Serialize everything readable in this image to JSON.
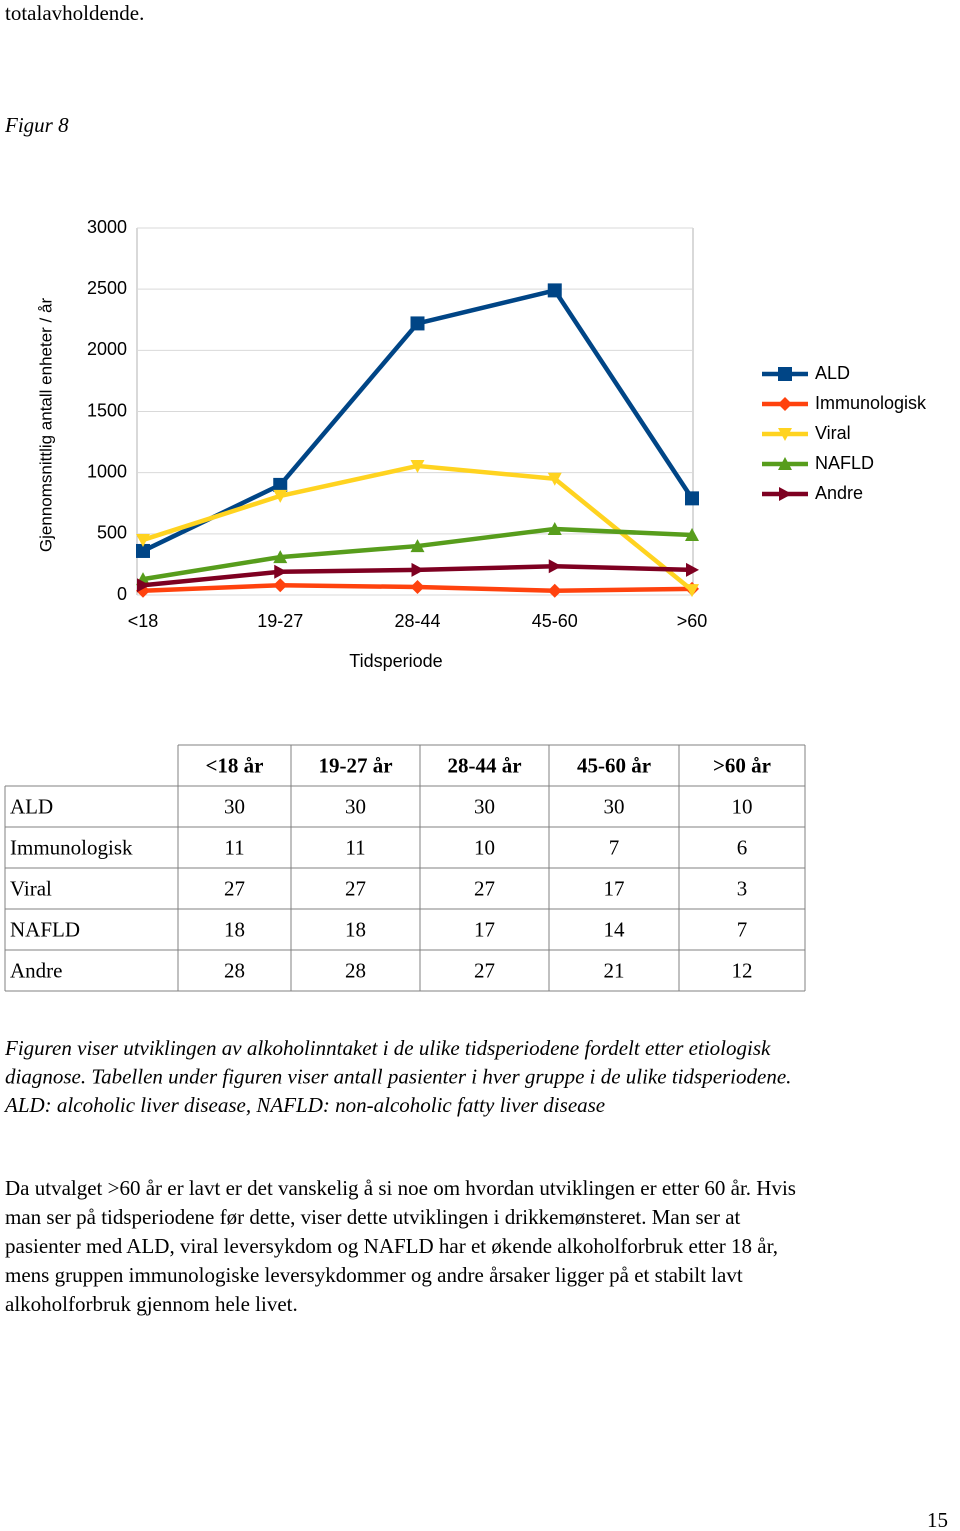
{
  "header_text": "totalavholdende.",
  "figure_label": "Figur 8",
  "chart_data": {
    "type": "line",
    "ylabel": "Gjennomsnittlig antall enheter / år",
    "xlabel": "Tidsperiode",
    "categories": [
      "<18",
      "19-27",
      "28-44",
      "45-60",
      ">60"
    ],
    "ylim": [
      0,
      3000
    ],
    "yticks": [
      0,
      500,
      1000,
      1500,
      2000,
      2500,
      3000
    ],
    "grid": true,
    "legend": "right",
    "series": [
      {
        "name": "ALD",
        "color": "#004586",
        "marker": "square",
        "values": [
          360,
          900,
          2220,
          2490,
          790
        ]
      },
      {
        "name": "Immunologisk",
        "color": "#ff420e",
        "marker": "diamond",
        "values": [
          35,
          80,
          65,
          35,
          50
        ]
      },
      {
        "name": "Viral",
        "color": "#ffd320",
        "marker": "triangle-down",
        "values": [
          450,
          810,
          1055,
          950,
          40
        ]
      },
      {
        "name": "NAFLD",
        "color": "#579d1c",
        "marker": "triangle-up",
        "values": [
          130,
          310,
          400,
          540,
          490
        ]
      },
      {
        "name": "Andre",
        "color": "#7e0021",
        "marker": "arrow-right",
        "values": [
          80,
          190,
          205,
          235,
          205
        ]
      }
    ]
  },
  "table": {
    "header": [
      "<18 år",
      "19-27 år",
      "28-44 år",
      "45-60 år",
      ">60 år"
    ],
    "rows": [
      [
        "ALD",
        30,
        30,
        30,
        30,
        10
      ],
      [
        "Immunologisk",
        11,
        11,
        10,
        7,
        6
      ],
      [
        "Viral",
        27,
        27,
        27,
        17,
        3
      ],
      [
        "NAFLD",
        18,
        18,
        17,
        14,
        7
      ],
      [
        "Andre",
        28,
        28,
        27,
        21,
        12
      ]
    ]
  },
  "caption": [
    "Figuren viser utviklingen av alkoholinntaket i de ulike tidsperiodene fordelt etter etiologisk",
    "diagnose. Tabellen under figuren viser antall pasienter i hver gruppe i de ulike tidsperiodene.",
    "ALD: alcoholic liver disease, NAFLD: non-alcoholic fatty liver disease"
  ],
  "body": [
    "Da utvalget >60 år er lavt er det vanskelig å si noe om hvordan utviklingen er etter 60 år. Hvis",
    "man ser på tidsperiodene før dette, viser dette utviklingen i drikkemønsteret. Man ser at",
    "pasienter med ALD, viral leversykdom og NAFLD har et økende alkoholforbruk etter 18 år,",
    "mens gruppen immunologiske leversykdommer og andre årsaker ligger på et stabilt lavt",
    "alkoholforbruk gjennom hele livet."
  ],
  "page_number": "15"
}
